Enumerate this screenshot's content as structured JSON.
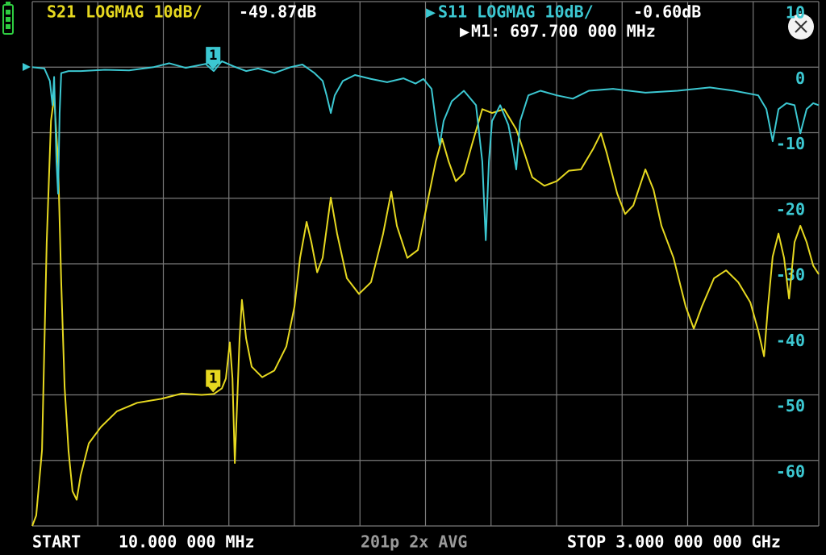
{
  "chart_data": {
    "type": "line",
    "xlim": [
      10,
      3000
    ],
    "ylim": [
      -70,
      10
    ],
    "yticks": [
      10,
      0,
      -10,
      -20,
      -30,
      -40,
      -50,
      -60
    ],
    "grid": true,
    "marker_readout": "M1: 697.700 000 MHz",
    "start_label": "START",
    "start": "10.000 000 MHz",
    "status": "201p 2x AVG",
    "stop": "STOP 3.000 000 000 GHz",
    "series": [
      {
        "name": "S21 LOGMAG 10dB/",
        "color": "#e6d820",
        "marker": {
          "label": "1",
          "x": 697.7,
          "value": -49.87,
          "value_label": "-49.87dB"
        },
        "x": [
          10,
          25,
          47,
          65,
          81,
          93,
          108,
          120,
          133,
          148,
          163,
          179,
          194,
          225,
          271,
          332,
          409,
          501,
          578,
          654,
          700,
          731,
          746,
          761,
          771,
          780,
          789,
          798,
          807,
          823,
          844,
          884,
          930,
          976,
          1007,
          1028,
          1053,
          1071,
          1093,
          1114,
          1145,
          1169,
          1206,
          1252,
          1298,
          1344,
          1375,
          1396,
          1436,
          1476,
          1513,
          1544,
          1568,
          1593,
          1620,
          1651,
          1681,
          1721,
          1758,
          1804,
          1850,
          1881,
          1911,
          1957,
          2004,
          2050,
          2096,
          2142,
          2172,
          2194,
          2234,
          2264,
          2295,
          2341,
          2372,
          2402,
          2448,
          2494,
          2525,
          2556,
          2602,
          2648,
          2694,
          2740,
          2770,
          2792,
          2807,
          2825,
          2847,
          2868,
          2887,
          2908,
          2930,
          2954,
          2979,
          3000
        ],
        "values": [
          -70,
          -68.4,
          -58.4,
          -26.7,
          -8.2,
          -4.5,
          -14.4,
          -32.8,
          -48.8,
          -58.6,
          -64.7,
          -66.0,
          -62.3,
          -57.4,
          -54.9,
          -52.5,
          -51.2,
          -50.6,
          -49.8,
          -50.0,
          -49.87,
          -49.0,
          -47.5,
          -42.0,
          -47.5,
          -60.4,
          -51.2,
          -41.4,
          -35.5,
          -41.4,
          -45.7,
          -47.3,
          -46.3,
          -42.6,
          -36.5,
          -29.1,
          -23.6,
          -26.7,
          -31.3,
          -29.1,
          -19.9,
          -25.4,
          -32.2,
          -34.6,
          -32.8,
          -25.4,
          -19.0,
          -24.2,
          -29.1,
          -27.9,
          -20.5,
          -14.4,
          -10.9,
          -14.4,
          -17.4,
          -16.2,
          -11.9,
          -6.4,
          -7.0,
          -6.4,
          -9.5,
          -13.1,
          -16.8,
          -18.1,
          -17.4,
          -15.8,
          -15.6,
          -12.5,
          -10.1,
          -13.1,
          -19.3,
          -22.4,
          -21.1,
          -15.6,
          -18.7,
          -24.2,
          -29.1,
          -36.5,
          -39.9,
          -36.5,
          -32.2,
          -31.0,
          -32.8,
          -35.9,
          -40.2,
          -44.1,
          -36.5,
          -28.9,
          -25.4,
          -29.1,
          -35.3,
          -26.7,
          -24.2,
          -26.7,
          -30.3,
          -31.6
        ]
      },
      {
        "name": "S11 LOGMAG 10dB/",
        "color": "#3cc8d2",
        "marker": {
          "label": "1",
          "x": 697.7,
          "value": -0.6,
          "value_label": "-0.60dB"
        },
        "x": [
          10,
          56,
          77,
          87,
          93,
          102,
          108,
          114,
          120,
          148,
          194,
          286,
          378,
          470,
          531,
          593,
          669,
          700,
          731,
          777,
          823,
          869,
          930,
          991,
          1037,
          1083,
          1114,
          1129,
          1145,
          1160,
          1191,
          1237,
          1298,
          1359,
          1421,
          1467,
          1497,
          1528,
          1544,
          1559,
          1574,
          1605,
          1651,
          1697,
          1721,
          1734,
          1746,
          1758,
          1789,
          1820,
          1835,
          1850,
          1865,
          1896,
          1942,
          2004,
          2065,
          2126,
          2218,
          2341,
          2463,
          2586,
          2678,
          2770,
          2801,
          2825,
          2847,
          2877,
          2908,
          2930,
          2954,
          2979,
          3000
        ],
        "values": [
          0,
          -0.2,
          -2.1,
          -5.8,
          -1.5,
          -14.4,
          -19.3,
          -7.0,
          -0.9,
          -0.6,
          -0.6,
          -0.4,
          -0.5,
          0,
          0.6,
          -0.1,
          0.5,
          -0.6,
          0.9,
          0.1,
          -0.6,
          -0.2,
          -0.9,
          0,
          0.4,
          -0.9,
          -2.1,
          -4.3,
          -7.0,
          -4.3,
          -2.1,
          -1.2,
          -1.8,
          -2.3,
          -1.7,
          -2.5,
          -1.8,
          -3.3,
          -8.2,
          -11.9,
          -8.2,
          -5.2,
          -3.6,
          -5.8,
          -14.4,
          -26.4,
          -14.4,
          -8.2,
          -5.8,
          -8.8,
          -11.9,
          -15.6,
          -8.2,
          -4.3,
          -3.6,
          -4.3,
          -4.8,
          -3.6,
          -3.3,
          -3.9,
          -3.6,
          -3.1,
          -3.6,
          -4.3,
          -6.4,
          -11.3,
          -6.4,
          -5.5,
          -5.8,
          -10.1,
          -6.4,
          -5.5,
          -5.8
        ]
      }
    ]
  }
}
